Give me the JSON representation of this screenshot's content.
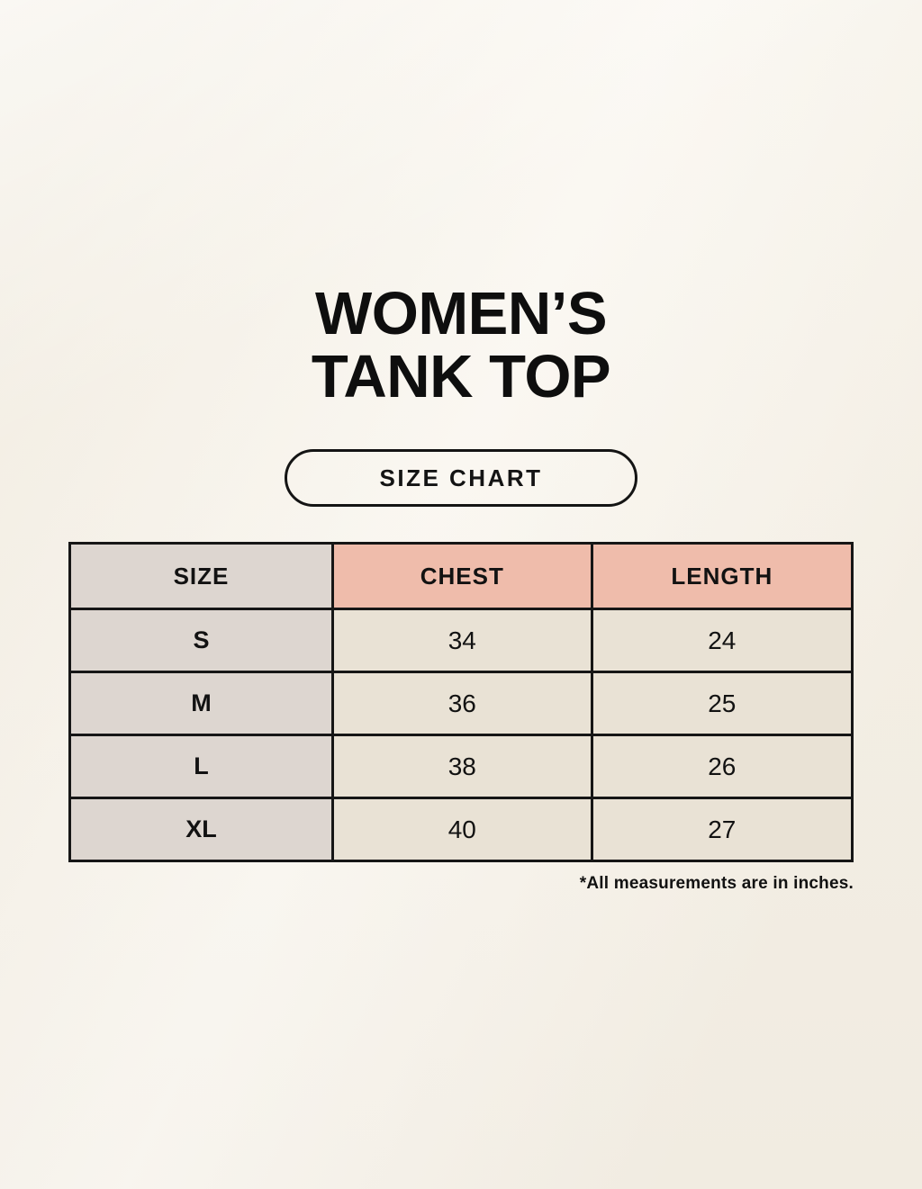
{
  "header": {
    "title_line1": "WOMEN’S",
    "title_line2": "TANK TOP",
    "badge_label": "SIZE CHART"
  },
  "chart_data": {
    "type": "table",
    "title": "WOMEN’S TANK TOP — SIZE CHART",
    "columns": [
      "SIZE",
      "CHEST",
      "LENGTH"
    ],
    "rows": [
      [
        "S",
        "34",
        "24"
      ],
      [
        "M",
        "36",
        "25"
      ],
      [
        "L",
        "38",
        "26"
      ],
      [
        "XL",
        "40",
        "27"
      ]
    ],
    "units": "inches"
  },
  "footnote": {
    "text": "*All measurements are in inches."
  },
  "colors": {
    "background": "#f6f1e7",
    "size_column": "#ddd6d0",
    "header_accent": "#efbcab",
    "data_cell": "#e9e2d5",
    "border": "#161616",
    "text": "#121212"
  }
}
